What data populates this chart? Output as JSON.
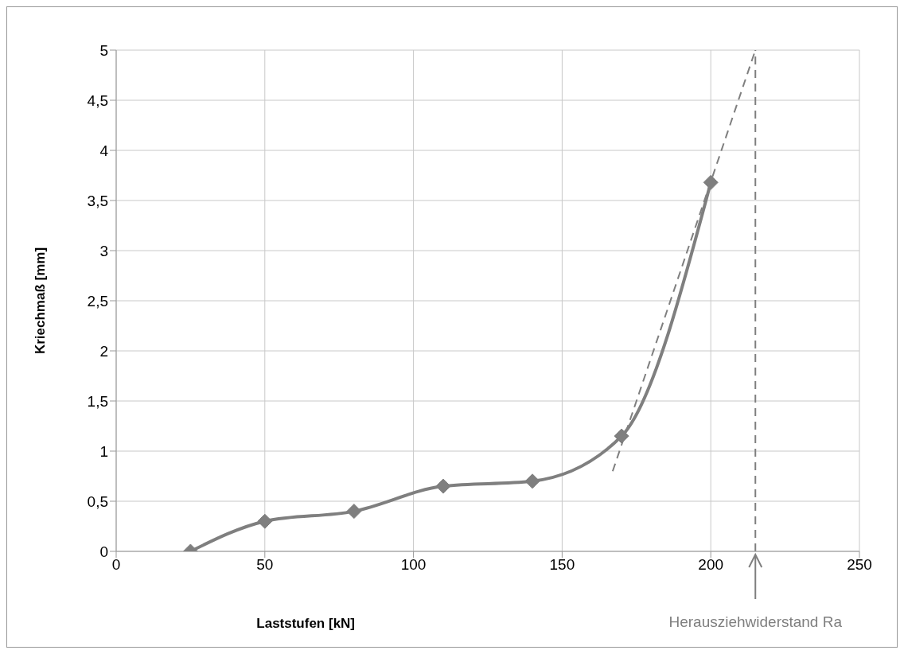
{
  "chart_data": {
    "type": "line",
    "xlabel": "Laststufen [kN]",
    "ylabel": "Kriechmaß [mm]",
    "xlim": [
      0,
      250
    ],
    "xticks": [
      0,
      50,
      100,
      150,
      200,
      250
    ],
    "ylim": [
      0,
      5
    ],
    "yticks": [
      0,
      {
        "value": 0.5,
        "label": "0,5"
      },
      1,
      {
        "value": 1.5,
        "label": "1,5"
      },
      2,
      {
        "value": 2.5,
        "label": "2,5"
      },
      3,
      {
        "value": 3.5,
        "label": "3,5"
      },
      4,
      {
        "value": 4.5,
        "label": "4,5"
      },
      5
    ],
    "grid": true,
    "series": [
      {
        "color": "#7f7f7f",
        "x": [
          25,
          50,
          80,
          110,
          140,
          170,
          200
        ],
        "values": [
          0.0,
          0.3,
          0.4,
          0.65,
          0.7,
          1.15,
          3.68
        ],
        "marker": "diamond",
        "line_style": "solid"
      },
      {
        "type": "line",
        "color": "#7f7f7f",
        "x": [
          167,
          215
        ],
        "values": [
          0.8,
          5
        ],
        "marker": "none",
        "line_style": "dashed"
      }
    ],
    "ref_lines": [
      {
        "axis": "x",
        "value": 215,
        "label": "Herausziehwiderstand Ra",
        "color": "#7f7f7f",
        "line_style": "dashed"
      }
    ]
  }
}
